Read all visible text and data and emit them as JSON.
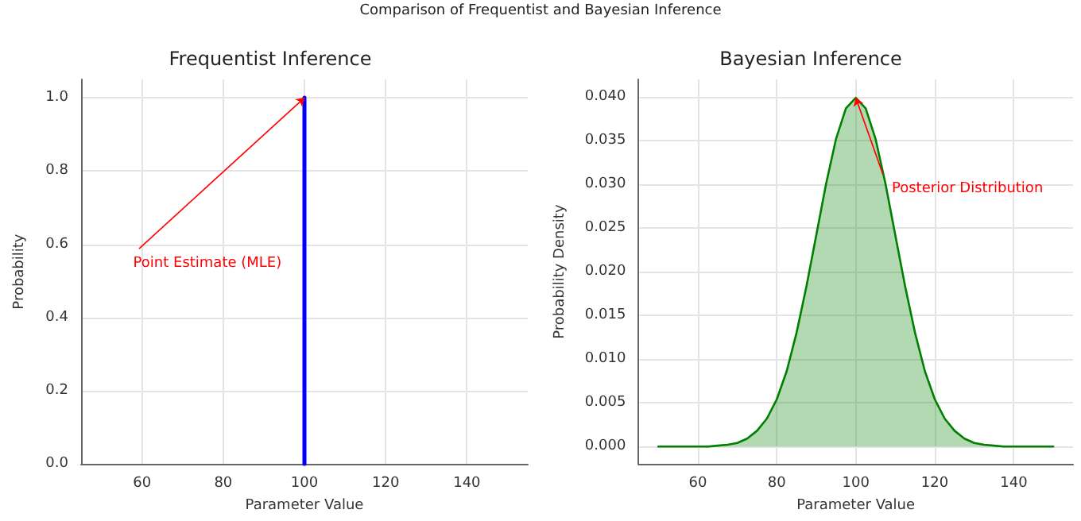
{
  "chart_data": [
    {
      "type": "line",
      "title": "Frequentist Inference",
      "xlabel": "Parameter Value",
      "ylabel": "Probability",
      "annotations": [
        "Comparison of Frequentist and Bayesian Inference",
        {
          "text": "Point Estimate (MLE)",
          "x": 100,
          "y": 1.0
        }
      ],
      "series": [
        {
          "color": "#0000ff",
          "x": [
            100,
            100
          ],
          "values": [
            0,
            1.0
          ]
        }
      ],
      "xlim": [
        45,
        155
      ],
      "xticks": [
        60,
        80,
        100,
        120,
        140
      ],
      "ylim": [
        0,
        1.05
      ],
      "yticks": [
        {
          "value": 0,
          "label": "0.0"
        },
        {
          "value": 0.2,
          "label": "0.2"
        },
        {
          "value": 0.4,
          "label": "0.4"
        },
        {
          "value": 0.6,
          "label": "0.6"
        },
        {
          "value": 0.8,
          "label": "0.8"
        },
        {
          "value": 1.0,
          "label": "1.0"
        }
      ],
      "grid": true,
      "marker": "none",
      "line_style": "solid"
    },
    {
      "type": "area",
      "title": "Bayesian Inference",
      "xlabel": "Parameter Value",
      "ylabel": "Probability Density",
      "annotations": [
        {
          "text": "Posterior Distribution",
          "x": 100,
          "y": 0.0399
        }
      ],
      "x": [
        50,
        52.5,
        55,
        57.5,
        60,
        62.5,
        65,
        67.5,
        70,
        72.5,
        75,
        77.5,
        80,
        82.5,
        85,
        87.5,
        90,
        92.5,
        95,
        97.5,
        100,
        102.5,
        105,
        107.5,
        110,
        112.5,
        115,
        117.5,
        120,
        122.5,
        125,
        127.5,
        130,
        132.5,
        135,
        137.5,
        140,
        142.5,
        145,
        147.5,
        150
      ],
      "series": [
        {
          "color": "#008000",
          "values": [
            0,
            0,
            0,
            0,
            0,
            0,
            0.0001,
            0.0002,
            0.0004,
            0.0009,
            0.0018,
            0.0032,
            0.0054,
            0.0086,
            0.013,
            0.0183,
            0.0242,
            0.0301,
            0.0352,
            0.0387,
            0.0399,
            0.0387,
            0.0352,
            0.0301,
            0.0242,
            0.0183,
            0.013,
            0.0086,
            0.0054,
            0.0032,
            0.0018,
            0.0009,
            0.0004,
            0.0002,
            0.0001,
            0,
            0,
            0,
            0,
            0,
            0
          ]
        }
      ],
      "xlim": [
        45,
        155
      ],
      "xticks": [
        60,
        80,
        100,
        120,
        140
      ],
      "ylim": [
        -0.002,
        0.042
      ],
      "yticks": [
        {
          "value": 0,
          "label": "0.000"
        },
        {
          "value": 0.005,
          "label": "0.005"
        },
        {
          "value": 0.01,
          "label": "0.010"
        },
        {
          "value": 0.015,
          "label": "0.015"
        },
        {
          "value": 0.02,
          "label": "0.020"
        },
        {
          "value": 0.025,
          "label": "0.025"
        },
        {
          "value": 0.03,
          "label": "0.030"
        },
        {
          "value": 0.035,
          "label": "0.035"
        },
        {
          "value": 0.04,
          "label": "0.040"
        }
      ],
      "grid": true,
      "marker": "none",
      "line_style": "solid"
    }
  ]
}
